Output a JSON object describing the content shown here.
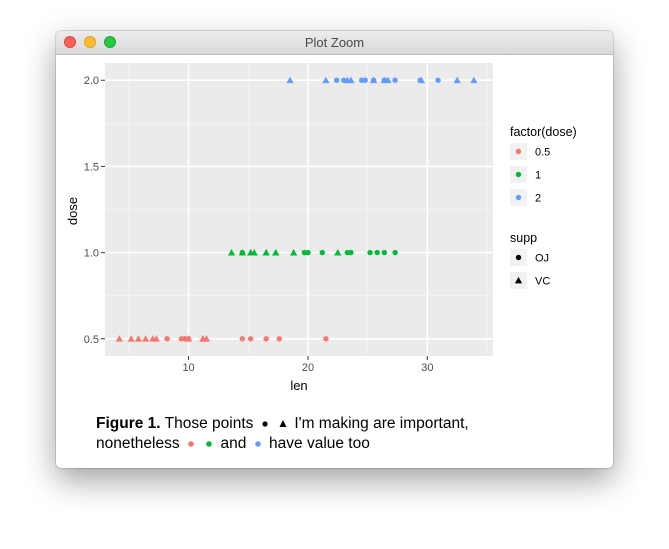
{
  "window": {
    "title": "Plot Zoom"
  },
  "chart_data": {
    "type": "scatter",
    "xlabel": "len",
    "ylabel": "dose",
    "xlim": [
      3.0,
      35.5
    ],
    "ylim": [
      0.4,
      2.1
    ],
    "xticks": [
      10,
      20,
      30
    ],
    "xtick_labels": [
      "10",
      "20",
      "30"
    ],
    "yticks": [
      0.5,
      1.0,
      1.5,
      2.0
    ],
    "ytick_labels": [
      "0.5",
      "1.0",
      "1.5",
      "2.0"
    ],
    "grid": true,
    "legend_position": "right",
    "color_legend": {
      "title": "factor(dose)",
      "items": [
        {
          "label": "0.5",
          "color": "#F8766D"
        },
        {
          "label": "1",
          "color": "#00BA38"
        },
        {
          "label": "2",
          "color": "#619CFF"
        }
      ]
    },
    "shape_legend": {
      "title": "supp",
      "items": [
        {
          "label": "OJ",
          "shape": "circle"
        },
        {
          "label": "VC",
          "shape": "triangle"
        }
      ]
    },
    "series": [
      {
        "dose": 0.5,
        "supp": "OJ",
        "color": "#F8766D",
        "shape": "circle",
        "x": [
          15.2,
          21.5,
          17.6,
          9.7,
          14.5,
          10.0,
          8.2,
          9.4,
          16.5,
          9.7
        ]
      },
      {
        "dose": 0.5,
        "supp": "VC",
        "color": "#F8766D",
        "shape": "triangle",
        "x": [
          4.2,
          11.5,
          7.3,
          5.8,
          6.4,
          10.0,
          11.2,
          11.2,
          5.2,
          7.0
        ]
      },
      {
        "dose": 1.0,
        "supp": "OJ",
        "color": "#00BA38",
        "shape": "circle",
        "x": [
          19.7,
          23.3,
          23.6,
          26.4,
          20.0,
          25.2,
          25.8,
          21.2,
          14.5,
          27.3
        ]
      },
      {
        "dose": 1.0,
        "supp": "VC",
        "color": "#00BA38",
        "shape": "triangle",
        "x": [
          16.5,
          16.5,
          15.2,
          17.3,
          22.5,
          17.3,
          13.6,
          14.5,
          18.8,
          15.5
        ]
      },
      {
        "dose": 2.0,
        "supp": "OJ",
        "color": "#619CFF",
        "shape": "circle",
        "x": [
          25.5,
          26.4,
          22.4,
          24.5,
          24.8,
          30.9,
          26.4,
          27.3,
          29.4,
          23.0
        ]
      },
      {
        "dose": 2.0,
        "supp": "VC",
        "color": "#619CFF",
        "shape": "triangle",
        "x": [
          23.6,
          18.5,
          33.9,
          25.5,
          26.4,
          32.5,
          26.7,
          21.5,
          23.3,
          29.5
        ]
      }
    ]
  },
  "caption": {
    "label": "Figure 1.",
    "part1": "Those points",
    "part2": "I'm making are important,",
    "part3": "nonetheless",
    "part4": "and",
    "part5": "have value too"
  }
}
